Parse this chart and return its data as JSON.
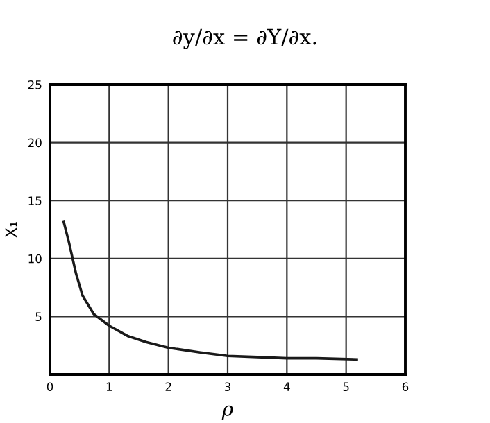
{
  "chart_data": {
    "type": "line",
    "title": "∂y/∂x = ∂Y/∂x.",
    "xlabel": "ρ",
    "ylabel": "X₁",
    "x": [
      0.23,
      0.32,
      0.44,
      0.55,
      0.74,
      1.0,
      1.32,
      1.62,
      2.0,
      2.54,
      3.0,
      3.5,
      4.0,
      4.5,
      5.18
    ],
    "series": [
      {
        "color": "#1a1a1a",
        "values": [
          13.2,
          11.4,
          8.7,
          6.8,
          5.2,
          4.2,
          3.3,
          2.8,
          2.3,
          1.9,
          1.6,
          1.5,
          1.4,
          1.4,
          1.3
        ]
      }
    ],
    "xlim": [
      0,
      6
    ],
    "ylim": [
      0,
      25
    ],
    "xticks": [
      0,
      1,
      2,
      3,
      4,
      5,
      6
    ],
    "yticks": [
      {
        "value": 0,
        "label": null
      },
      5,
      10,
      15,
      20,
      25
    ],
    "grid": true,
    "marker": "none",
    "line_style": "solid"
  }
}
